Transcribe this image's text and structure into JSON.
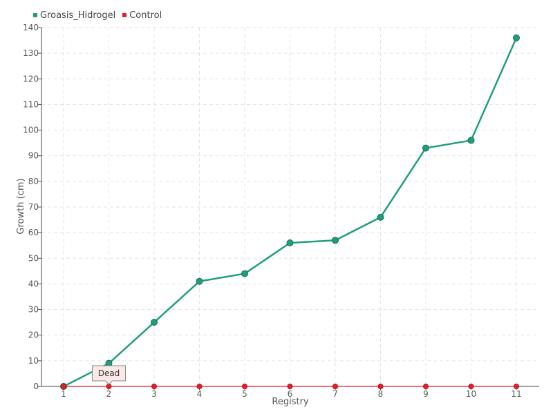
{
  "chart_data": {
    "type": "line",
    "title": "",
    "xlabel": "Registry",
    "ylabel": "Growth (cm)",
    "categories": [
      "1",
      "2",
      "3",
      "4",
      "5",
      "6",
      "7",
      "8",
      "9",
      "10",
      "11"
    ],
    "ylim": [
      0,
      140
    ],
    "yticks": [
      0,
      10,
      20,
      30,
      40,
      50,
      60,
      70,
      80,
      90,
      100,
      110,
      120,
      130,
      140
    ],
    "grid": true,
    "legend_position": "top-left",
    "series": [
      {
        "name": "Groasis_Hidrogel",
        "color": "#1f9e7d",
        "values": [
          0,
          9,
          25,
          41,
          44,
          56,
          57,
          66,
          93,
          96,
          136
        ]
      },
      {
        "name": "Control",
        "color": "#e21f26",
        "values": [
          0,
          0,
          0,
          0,
          0,
          0,
          0,
          0,
          0,
          0,
          0
        ]
      }
    ],
    "annotations": [
      {
        "text": "Dead",
        "category": "2",
        "series": "Control"
      }
    ]
  }
}
